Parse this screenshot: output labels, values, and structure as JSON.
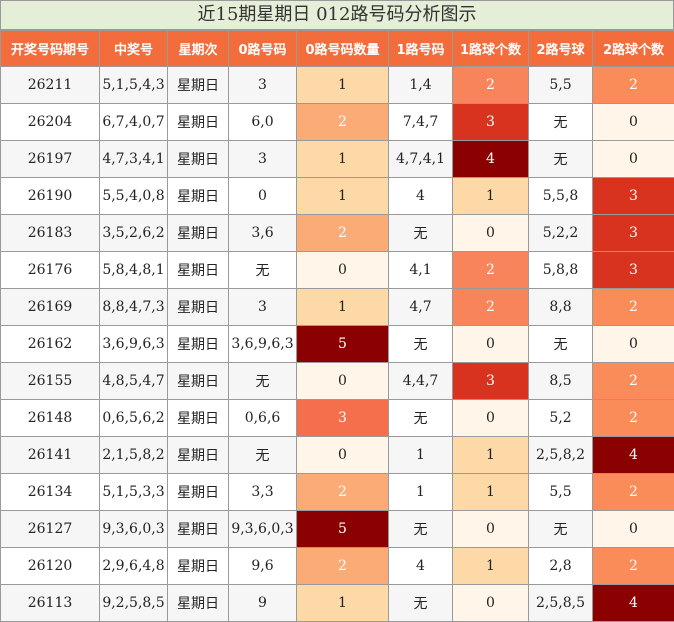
{
  "title": "近15期星期日 012路号码分析图示",
  "headers": [
    "开奖号码期号",
    "中奖号",
    "星期次",
    "0路号码",
    "0路号码数量",
    "1路号码",
    "1路球个数",
    "2路号球",
    "2路球个数"
  ],
  "rows": [
    [
      "26211",
      "5,1,5,4,3",
      "星期日",
      "3",
      "1",
      "1,4",
      "2",
      "5,5",
      "2"
    ],
    [
      "26204",
      "6,7,4,0,7",
      "星期日",
      "6,0",
      "2",
      "7,4,7",
      "3",
      "无",
      "0"
    ],
    [
      "26197",
      "4,7,3,4,1",
      "星期日",
      "3",
      "1",
      "4,7,4,1",
      "4",
      "无",
      "0"
    ],
    [
      "26190",
      "5,5,4,0,8",
      "星期日",
      "0",
      "1",
      "4",
      "1",
      "5,5,8",
      "3"
    ],
    [
      "26183",
      "3,5,2,6,2",
      "星期日",
      "3,6",
      "2",
      "无",
      "0",
      "5,2,2",
      "3"
    ],
    [
      "26176",
      "5,8,4,8,1",
      "星期日",
      "无",
      "0",
      "4,1",
      "2",
      "5,8,8",
      "3"
    ],
    [
      "26169",
      "8,8,4,7,3",
      "星期日",
      "3",
      "1",
      "4,7",
      "2",
      "8,8",
      "2"
    ],
    [
      "26162",
      "3,6,9,6,3",
      "星期日",
      "3,6,9,6,3",
      "5",
      "无",
      "0",
      "无",
      "0"
    ],
    [
      "26155",
      "4,8,5,4,7",
      "星期日",
      "无",
      "0",
      "4,4,7",
      "3",
      "8,5",
      "2"
    ],
    [
      "26148",
      "0,6,5,6,2",
      "星期日",
      "0,6,6",
      "3",
      "无",
      "0",
      "5,2",
      "2"
    ],
    [
      "26141",
      "2,1,5,8,2",
      "星期日",
      "无",
      "0",
      "1",
      "1",
      "2,5,8,2",
      "4"
    ],
    [
      "26134",
      "5,1,5,3,3",
      "星期日",
      "3,3",
      "2",
      "1",
      "1",
      "5,5",
      "2"
    ],
    [
      "26127",
      "9,3,6,0,3",
      "星期日",
      "9,3,6,0,3",
      "5",
      "无",
      "0",
      "无",
      "0"
    ],
    [
      "26120",
      "2,9,6,4,8",
      "星期日",
      "9,6",
      "2",
      "4",
      "1",
      "2,8",
      "2"
    ],
    [
      "26113",
      "9,2,5,8,5",
      "星期日",
      "9",
      "1",
      "无",
      "0",
      "2,5,8,5",
      "4"
    ]
  ],
  "count_colors": {
    "0": "#fff5e9",
    "1": "#fed9a8",
    "2": "#fbab76",
    "3": "#f56f4c",
    "4": "#8b0000",
    "5": "#8b0000"
  },
  "count_colors_1lu": {
    "0": "#fff5e9",
    "1": "#fed9a8",
    "2": "#f7845a",
    "3": "#d8331e",
    "4": "#8b0000"
  },
  "count_colors_2lu": {
    "0": "#fff5e9",
    "2": "#f98c58",
    "3": "#d8331e",
    "4": "#8b0000"
  }
}
